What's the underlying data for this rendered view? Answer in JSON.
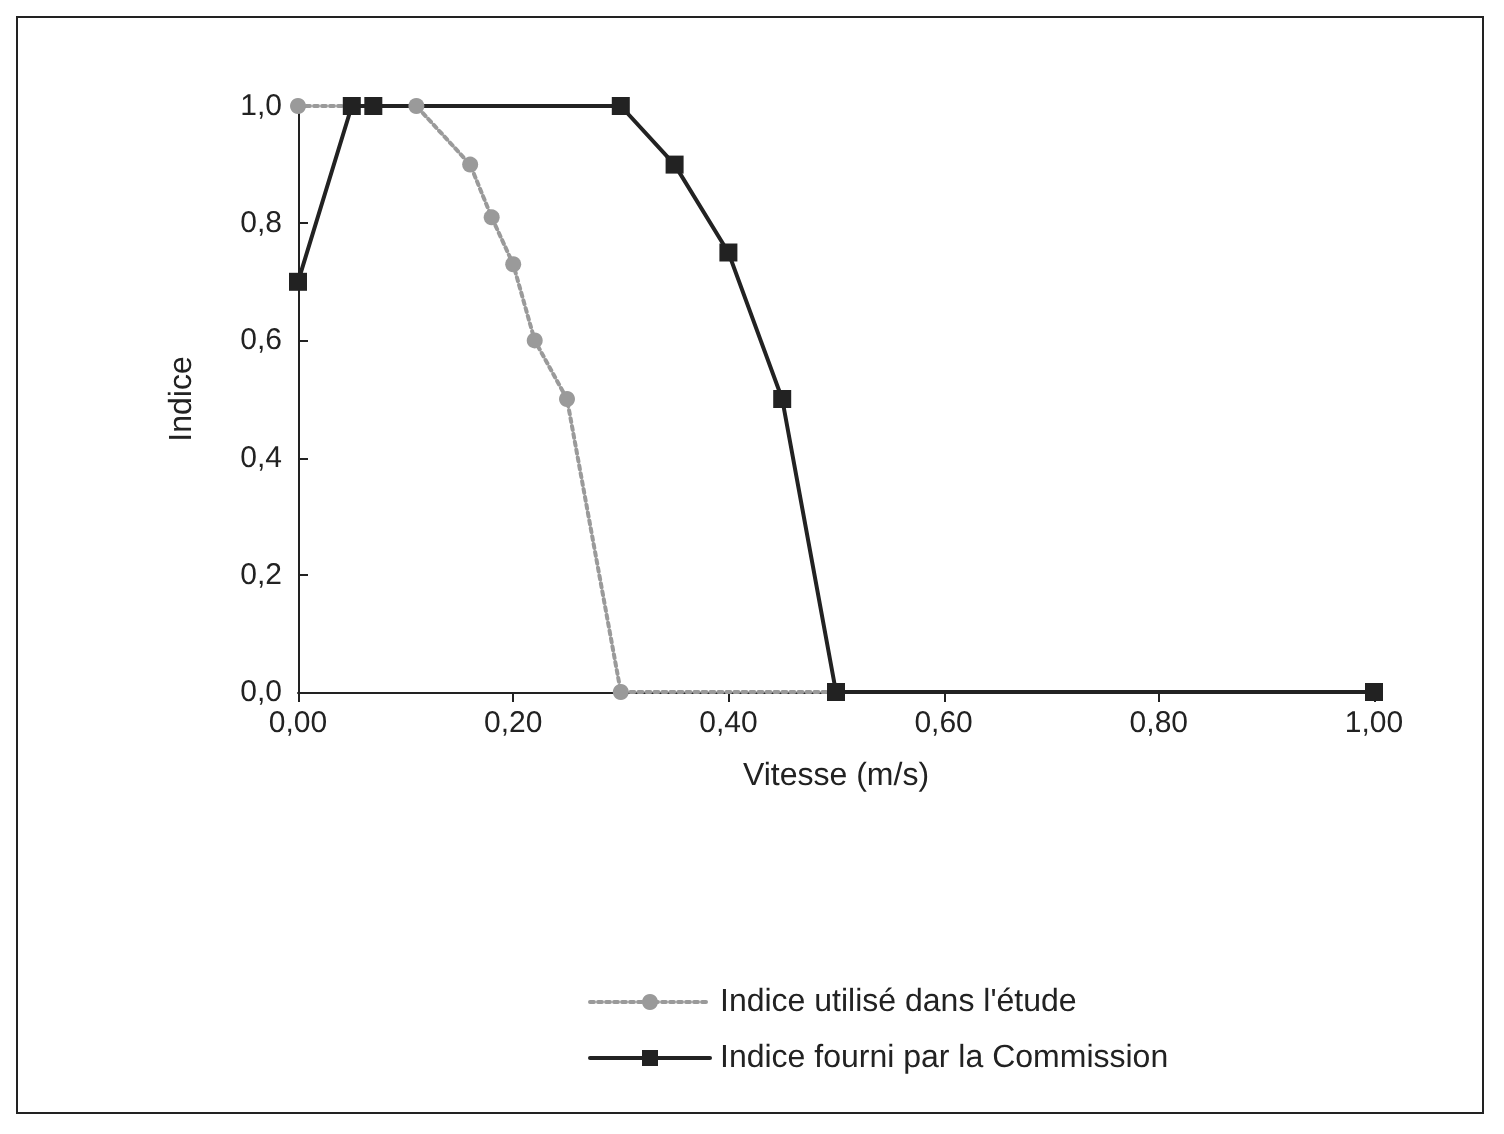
{
  "chart_data": {
    "type": "line",
    "xlabel": "Vitesse (m/s)",
    "ylabel": "Indice",
    "xlim": [
      0,
      1
    ],
    "ylim": [
      0,
      1
    ],
    "xticks": [
      {
        "value": 0,
        "label": "0,00"
      },
      {
        "value": 0.2,
        "label": "0,20"
      },
      {
        "value": 0.4,
        "label": "0,40"
      },
      {
        "value": 0.6,
        "label": "0,60"
      },
      {
        "value": 0.8,
        "label": "0,80"
      },
      {
        "value": 1,
        "label": "1,00"
      }
    ],
    "yticks": [
      {
        "value": 0,
        "label": "0,0"
      },
      {
        "value": 0.2,
        "label": "0,2"
      },
      {
        "value": 0.4,
        "label": "0,4"
      },
      {
        "value": 0.6,
        "label": "0,6"
      },
      {
        "value": 0.8,
        "label": "0,8"
      },
      {
        "value": 1,
        "label": "1,0"
      }
    ],
    "grid": false,
    "legend": "bottom",
    "series": [
      {
        "name": "Indice utilisé dans l'étude",
        "color": "#9a9a9a",
        "marker": "circle",
        "line_style": "dotted",
        "x": [
          0,
          0.07,
          0.11,
          0.16,
          0.18,
          0.2,
          0.22,
          0.25,
          0.3,
          0.5
        ],
        "values": [
          1,
          1,
          1,
          0.9,
          0.81,
          0.73,
          0.6,
          0.5,
          0,
          0
        ]
      },
      {
        "name": "Indice fourni par la Commission",
        "color": "#222222",
        "marker": "square",
        "line_style": "solid",
        "x": [
          0,
          0.05,
          0.07,
          0.3,
          0.35,
          0.4,
          0.45,
          0.5,
          1
        ],
        "values": [
          0.7,
          1,
          1,
          1,
          0.9,
          0.75,
          0.5,
          0,
          0
        ]
      }
    ]
  }
}
